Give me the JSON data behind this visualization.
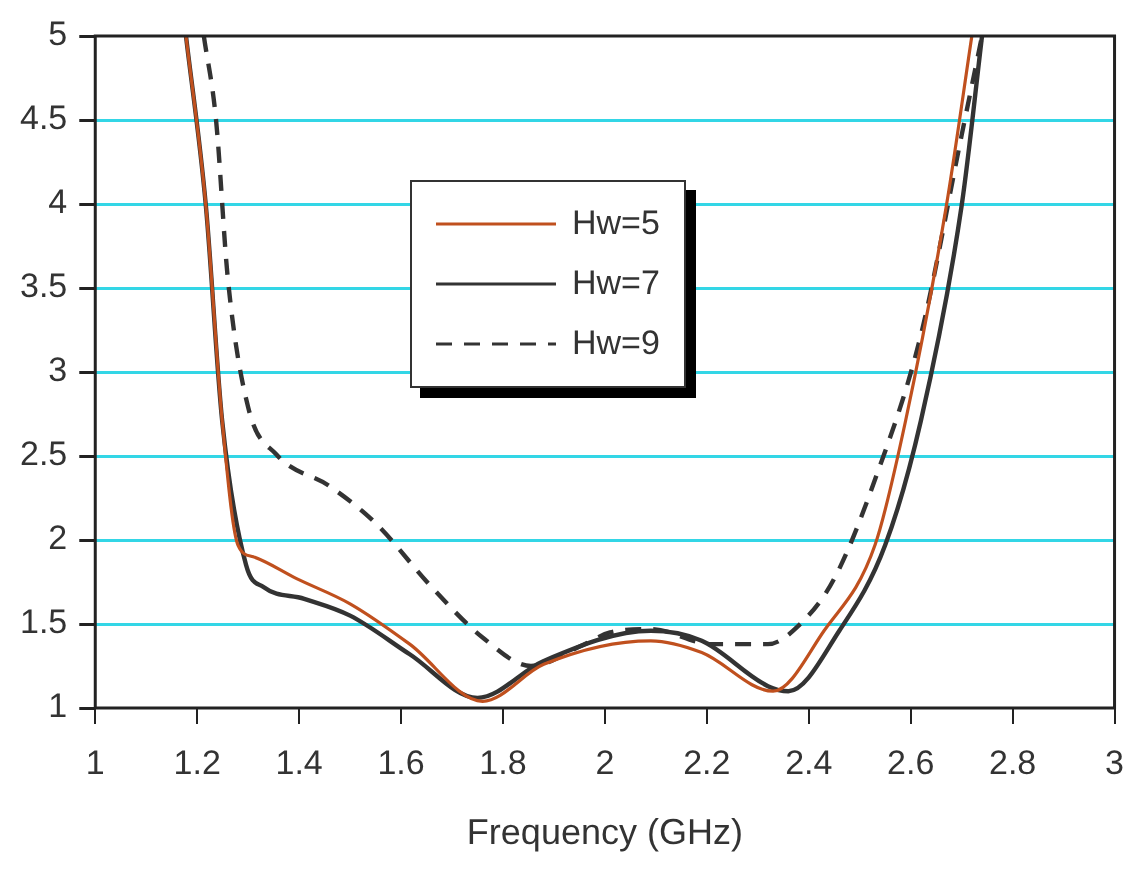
{
  "chart_data": {
    "type": "line",
    "xlabel": "Frequency (GHz)",
    "xlim": [
      1,
      3
    ],
    "xticks": [
      1,
      1.2,
      1.4,
      1.6,
      1.8,
      2,
      2.2,
      2.4,
      2.6,
      2.8,
      3
    ],
    "ylim": [
      1,
      5
    ],
    "yticks": [
      1,
      1.5,
      2,
      2.5,
      3,
      3.5,
      4,
      4.5,
      5
    ],
    "grid": "y",
    "legend": "top",
    "marker": "none",
    "series": [
      {
        "name": "Hw=5",
        "color": "#c0501e",
        "line_style": "solid",
        "x": [
          1.178,
          1.217,
          1.249,
          1.28,
          1.31,
          1.395,
          1.5,
          1.617,
          1.76,
          1.88,
          2.09,
          2.19,
          2.33,
          2.43,
          2.53,
          2.59,
          2.67,
          2.72
        ],
        "values": [
          5,
          3.99,
          2.71,
          1.97,
          1.9,
          1.77,
          1.62,
          1.38,
          1.04,
          1.26,
          1.4,
          1.33,
          1.1,
          1.46,
          1.97,
          2.71,
          3.99,
          5
        ]
      },
      {
        "name": "Hw=7",
        "color": "#333333",
        "line_style": "solid",
        "x": [
          1.178,
          1.217,
          1.249,
          1.296,
          1.33,
          1.41,
          1.5,
          1.617,
          1.75,
          1.88,
          2.09,
          2.19,
          2.32,
          2.36,
          2.46,
          2.55,
          2.62,
          2.7,
          2.74
        ],
        "values": [
          5,
          3.99,
          2.71,
          1.85,
          1.72,
          1.65,
          1.55,
          1.32,
          1.06,
          1.28,
          1.46,
          1.4,
          1.13,
          1.1,
          1.46,
          1.97,
          2.71,
          3.99,
          5
        ]
      },
      {
        "name": "Hw=9",
        "color": "#333333",
        "line_style": "dashed",
        "x": [
          1.213,
          1.237,
          1.26,
          1.3,
          1.355,
          1.46,
          1.55,
          1.66,
          1.76,
          1.855,
          1.96,
          2.01,
          2.09,
          2.21,
          2.32,
          2.38,
          2.45,
          2.53,
          2.62,
          2.7,
          2.74
        ],
        "values": [
          5,
          4.5,
          3.56,
          2.79,
          2.51,
          2.32,
          2.1,
          1.72,
          1.42,
          1.25,
          1.38,
          1.45,
          1.47,
          1.38,
          1.38,
          1.49,
          1.77,
          2.36,
          3.22,
          4.41,
          5
        ]
      }
    ]
  }
}
